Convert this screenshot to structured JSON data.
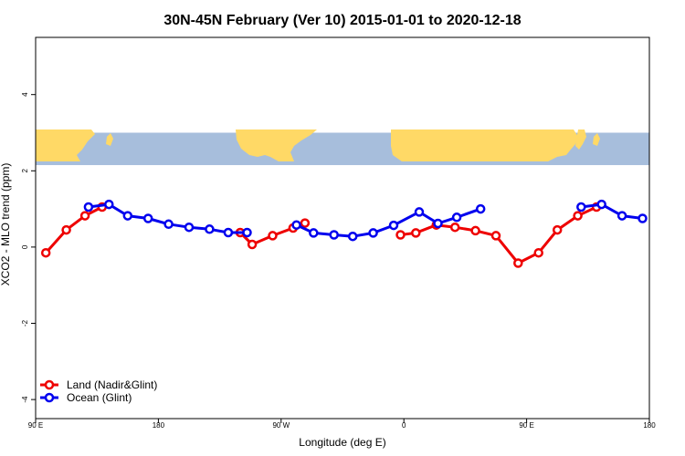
{
  "chart_data": {
    "type": "line",
    "title": "30N-45N February (Ver 10)   2015-01-01 to 2020-12-18",
    "xlabel": "Longitude (deg E)",
    "ylabel": "XCO2 - MLO trend (ppm)",
    "xlim": [
      90,
      450
    ],
    "ylim": [
      -4.5,
      5.5
    ],
    "x_ticks": [
      {
        "value": 90,
        "label": "90 E"
      },
      {
        "value": 162,
        "label": "180"
      },
      {
        "value": 234,
        "label": "90 W"
      },
      {
        "value": 306,
        "label": "0"
      },
      {
        "value": 378,
        "label": "90 E"
      },
      {
        "value": 450,
        "label": "180"
      }
    ],
    "y_ticks": [
      {
        "value": -4,
        "label": "-4"
      },
      {
        "value": -2,
        "label": "-2"
      },
      {
        "value": 0,
        "label": "0"
      },
      {
        "value": 2,
        "label": "2"
      },
      {
        "value": 4,
        "label": "4"
      }
    ],
    "map_band": {
      "ymin": 2.15,
      "ymax": 3.0,
      "land_color": "#FFD966",
      "ocean_color": "#A7BEDC"
    },
    "legend": {
      "position": "bottom-left"
    },
    "series": [
      {
        "name": "Land (Nadir&Glint)",
        "color": "#EE0000",
        "segments": [
          [
            [
              96,
              -0.15
            ],
            [
              108,
              0.45
            ],
            [
              119,
              0.82
            ],
            [
              129,
              1.05
            ]
          ],
          [
            [
              210,
              0.38
            ],
            [
              217,
              0.07
            ],
            [
              229,
              0.3
            ],
            [
              241,
              0.5
            ],
            [
              248,
              0.63
            ]
          ],
          [
            [
              304,
              0.32
            ],
            [
              313,
              0.37
            ],
            [
              325,
              0.58
            ],
            [
              336,
              0.52
            ],
            [
              348,
              0.43
            ],
            [
              360,
              0.3
            ],
            [
              373,
              -0.42
            ],
            [
              385,
              -0.15
            ],
            [
              396,
              0.45
            ],
            [
              408,
              0.82
            ],
            [
              419,
              1.05
            ]
          ]
        ]
      },
      {
        "name": "Ocean (Glint)",
        "color": "#0000EE",
        "segments": [
          [
            [
              121,
              1.05
            ],
            [
              133,
              1.12
            ],
            [
              144,
              0.82
            ],
            [
              156,
              0.75
            ],
            [
              168,
              0.6
            ],
            [
              180,
              0.52
            ],
            [
              192,
              0.47
            ],
            [
              203,
              0.38
            ],
            [
              214,
              0.38
            ]
          ],
          [
            [
              243,
              0.58
            ],
            [
              253,
              0.37
            ],
            [
              265,
              0.32
            ],
            [
              276,
              0.28
            ],
            [
              288,
              0.37
            ],
            [
              300,
              0.57
            ],
            [
              315,
              0.92
            ],
            [
              326,
              0.62
            ],
            [
              337,
              0.78
            ],
            [
              351,
              1.0
            ]
          ],
          [
            [
              410,
              1.05
            ],
            [
              422,
              1.12
            ],
            [
              434,
              0.82
            ],
            [
              446,
              0.75
            ]
          ]
        ]
      }
    ]
  }
}
